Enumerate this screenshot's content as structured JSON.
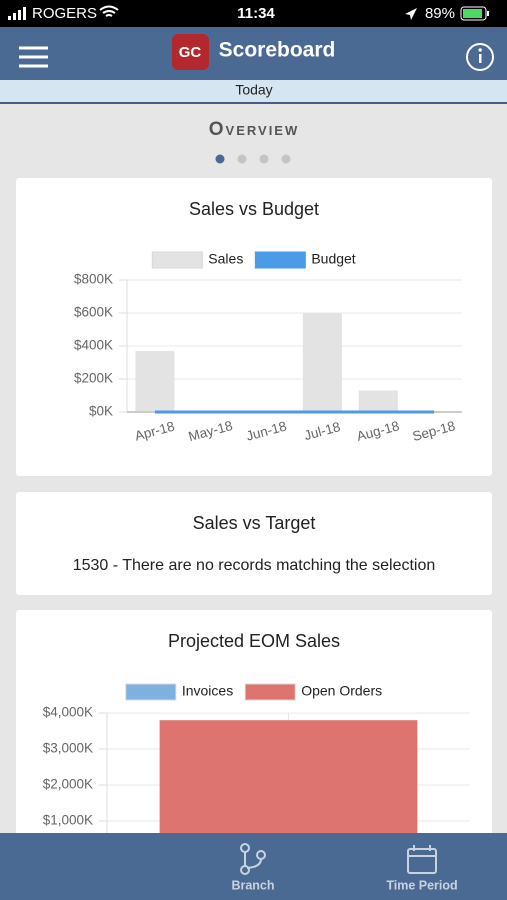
{
  "status_bar": {
    "carrier": "ROGERS",
    "time": "11:34",
    "battery": "89%"
  },
  "header": {
    "logo": "GC",
    "title": "Scoreboard"
  },
  "date_bar": {
    "label": "Today"
  },
  "section": {
    "title": "Overview"
  },
  "cards": [
    {
      "type": "bar",
      "title": "Sales vs Budget",
      "categories": [
        "Apr-18",
        "May-18",
        "Jun-18",
        "Jul-18",
        "Aug-18",
        "Sep-18"
      ],
      "series": [
        {
          "name": "Sales",
          "type": "bar",
          "color": "#e3e3e3",
          "values": [
            370,
            0,
            0,
            600,
            130,
            0
          ]
        },
        {
          "name": "Budget",
          "type": "line",
          "color": "#4a9be8",
          "values": [
            0,
            0,
            0,
            0,
            0,
            0
          ]
        }
      ],
      "ylim": [
        0,
        800
      ],
      "yticks": [
        {
          "value": 0,
          "label": "$0K"
        },
        {
          "value": 200,
          "label": "$200K"
        },
        {
          "value": 400,
          "label": "$400K"
        },
        {
          "value": 600,
          "label": "$600K"
        },
        {
          "value": 800,
          "label": "$800K"
        }
      ],
      "grid": true
    },
    {
      "title": "Sales vs Target",
      "message": "1530 - There are no records matching the selection"
    },
    {
      "type": "bar",
      "title": "Projected EOM Sales",
      "stacked": true,
      "categories": [
        null
      ],
      "series": [
        {
          "name": "Invoices",
          "type": "bar",
          "color": "#7fb1e0",
          "values": [
            0
          ]
        },
        {
          "name": "Open Orders",
          "type": "bar",
          "color": "#dd7470",
          "values": [
            3800
          ]
        }
      ],
      "ylim": [
        0,
        4000
      ],
      "yticks": [
        {
          "value": 1000,
          "label": "$1,000K"
        },
        {
          "value": 2000,
          "label": "$2,000K"
        },
        {
          "value": 3000,
          "label": "$3,000K"
        },
        {
          "value": 4000,
          "label": "$4,000K"
        }
      ],
      "grid": true
    }
  ],
  "tab_bar": {
    "items": [
      "Branch",
      "Time Period"
    ]
  }
}
